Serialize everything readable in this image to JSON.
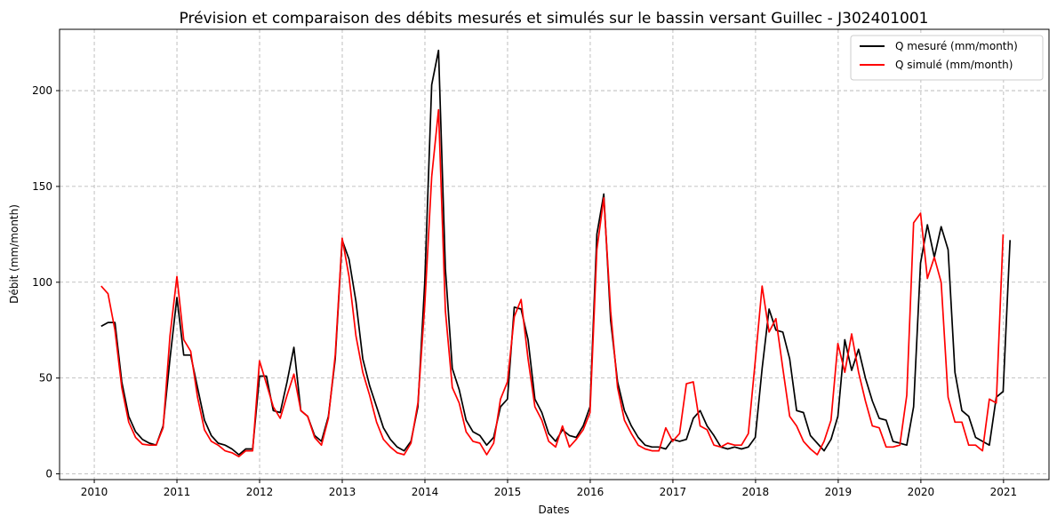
{
  "chart_data": {
    "type": "line",
    "title": "Prévision et comparaison des débits mesurés et simulés sur le bassin versant Guillec - J302401001",
    "xlabel": "Dates",
    "ylabel": "Débit (mm/month)",
    "xlim": [
      2009.58,
      2021.55
    ],
    "ylim": [
      -3,
      232
    ],
    "x_ticks": [
      2010,
      2011,
      2012,
      2013,
      2014,
      2015,
      2016,
      2017,
      2018,
      2019,
      2020,
      2021
    ],
    "x_tick_labels": [
      "2010",
      "2011",
      "2012",
      "2013",
      "2014",
      "2015",
      "2016",
      "2017",
      "2018",
      "2019",
      "2020",
      "2021"
    ],
    "y_ticks": [
      0,
      50,
      100,
      150,
      200
    ],
    "y_tick_labels": [
      "0",
      "50",
      "100",
      "150",
      "200"
    ],
    "grid": true,
    "legend_position": "top-right",
    "x_start": 2010.083,
    "x_step": 0.0833,
    "series": [
      {
        "name": "Q mesuré (mm/month)",
        "color": "#000000",
        "values": [
          77,
          79,
          79,
          48,
          30,
          22,
          18,
          16,
          15,
          25,
          60,
          92,
          62,
          62,
          45,
          28,
          20,
          16,
          15,
          13,
          10,
          13,
          13,
          51,
          51,
          33,
          32,
          48,
          66,
          33,
          30,
          20,
          17,
          30,
          60,
          122,
          112,
          90,
          60,
          46,
          35,
          24,
          18,
          14,
          12,
          17,
          35,
          100,
          203,
          221,
          107,
          55,
          44,
          28,
          22,
          20,
          15,
          19,
          35,
          39,
          87,
          86,
          70,
          39,
          32,
          21,
          17,
          23,
          20,
          19,
          25,
          35,
          125,
          146,
          80,
          48,
          33,
          25,
          19,
          15,
          14,
          14,
          13,
          18,
          17,
          18,
          29,
          33,
          25,
          20,
          14,
          13,
          14,
          13,
          14,
          19,
          55,
          86,
          75,
          74,
          60,
          33,
          32,
          20,
          16,
          12,
          18,
          30,
          70,
          54,
          65,
          50,
          38,
          29,
          28,
          17,
          16,
          15,
          35,
          110,
          130,
          113,
          129,
          117,
          53,
          33,
          30,
          19,
          17,
          15,
          40,
          43,
          122
        ]
      },
      {
        "name": "Q simulé (mm/month)",
        "color": "#ff0000",
        "values": [
          98,
          94,
          75,
          45,
          27,
          19,
          15.5,
          15,
          15,
          24,
          72,
          103,
          70,
          64,
          40,
          23,
          17,
          15,
          12,
          11,
          9,
          12,
          12,
          59,
          47,
          35,
          29,
          41,
          52,
          33,
          30,
          19,
          15,
          29,
          62,
          123,
          103,
          72,
          53,
          41,
          27,
          18,
          14,
          11,
          10,
          16,
          37,
          88,
          155,
          190,
          85,
          45,
          37,
          22,
          17,
          16,
          10,
          16,
          39,
          48,
          82,
          91,
          60,
          35,
          28,
          17,
          14,
          25,
          14,
          18,
          23,
          32,
          117,
          144,
          85,
          45,
          28,
          21,
          15,
          13,
          12,
          12,
          24,
          17,
          21,
          47,
          48,
          25,
          23,
          15,
          14,
          16,
          15,
          15,
          21,
          59,
          98,
          74,
          81,
          55,
          30,
          25,
          17,
          13,
          10,
          17,
          28,
          68,
          53,
          73,
          53,
          38,
          25,
          24,
          14,
          14,
          15,
          41,
          131,
          136,
          102,
          113,
          100,
          40,
          27,
          27,
          15,
          15,
          12,
          39,
          37,
          125
        ]
      }
    ]
  }
}
